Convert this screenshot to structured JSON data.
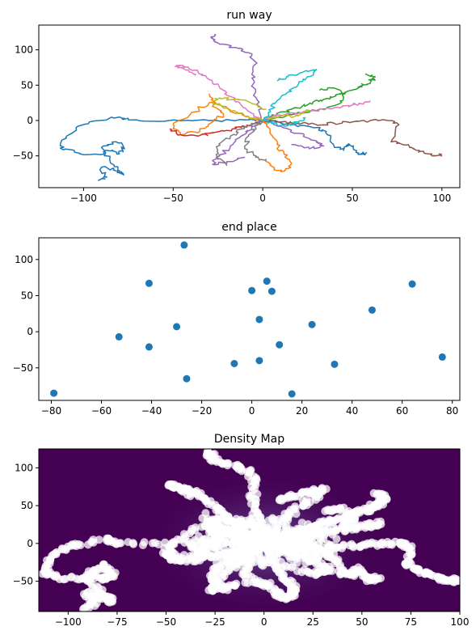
{
  "chart_data": [
    {
      "type": "line",
      "title": "run way",
      "xlabel": "",
      "ylabel": "",
      "xlim": [
        -125,
        110
      ],
      "ylim": [
        -95,
        135
      ],
      "xticks": [
        -100,
        -50,
        0,
        50,
        100
      ],
      "yticks": [
        -50,
        0,
        50,
        100
      ],
      "grid": false,
      "series": [
        {
          "color": "#1f77b4",
          "x": [
            0,
            -10,
            -30,
            -55,
            -75,
            -80,
            -95,
            -103,
            -110,
            -113,
            -105,
            -92,
            -85,
            -80,
            -77,
            -82,
            -90,
            -85,
            -80,
            -78,
            -83,
            -90,
            -87,
            -92
          ],
          "y": [
            0,
            1,
            0,
            -1,
            1,
            5,
            -1,
            -8,
            -24,
            -39,
            -45,
            -48,
            -43,
            -47,
            -40,
            -30,
            -38,
            -60,
            -71,
            -76,
            -70,
            -66,
            -80,
            -85
          ]
        },
        {
          "color": "#1f77b4",
          "x": [
            0,
            18,
            32,
            36,
            40,
            45,
            48,
            52,
            55,
            58
          ],
          "y": [
            0,
            -6,
            -10,
            -20,
            -38,
            -42,
            -33,
            -45,
            -48,
            -45
          ]
        },
        {
          "color": "#ff7f0e",
          "x": [
            0,
            -8,
            -14,
            -18,
            -22,
            -30,
            -40,
            -50,
            -46,
            -35,
            -28,
            -22,
            -26,
            -30
          ],
          "y": [
            0,
            5,
            10,
            14,
            20,
            25,
            10,
            -5,
            -20,
            -15,
            -2,
            8,
            18,
            38
          ]
        },
        {
          "color": "#ff7f0e",
          "x": [
            0,
            4,
            8,
            12,
            16,
            14,
            10,
            6,
            2
          ],
          "y": [
            0,
            -18,
            -34,
            -48,
            -60,
            -68,
            -72,
            -66,
            -54
          ]
        },
        {
          "color": "#2ca02c",
          "x": [
            0,
            8,
            16,
            22,
            28,
            34,
            40,
            46,
            52,
            56,
            60,
            62,
            58
          ],
          "y": [
            0,
            10,
            16,
            20,
            26,
            30,
            34,
            40,
            44,
            50,
            54,
            61,
            66
          ]
        },
        {
          "color": "#2ca02c",
          "x": [
            0,
            16,
            30,
            44,
            46,
            38,
            32
          ],
          "y": [
            0,
            8,
            14,
            26,
            38,
            46,
            44
          ]
        },
        {
          "color": "#d62728",
          "x": [
            0,
            -6,
            -12,
            -20,
            -30,
            -36,
            -46,
            -52
          ],
          "y": [
            0,
            -6,
            -10,
            -14,
            -18,
            -22,
            -20,
            -12
          ]
        },
        {
          "color": "#9467bd",
          "x": [
            0,
            -2,
            -4,
            -6,
            -4,
            -8,
            -14,
            -24,
            -28,
            -27
          ],
          "y": [
            0,
            20,
            40,
            60,
            80,
            96,
            102,
            108,
            118,
            121
          ]
        },
        {
          "color": "#9467bd",
          "x": [
            0,
            -6,
            -12,
            -18,
            -24,
            -28,
            -20,
            -10
          ],
          "y": [
            0,
            -10,
            -22,
            -36,
            -50,
            -62,
            -58,
            -52
          ]
        },
        {
          "color": "#9467bd",
          "x": [
            0,
            10,
            20,
            28,
            34,
            26,
            16
          ],
          "y": [
            0,
            -8,
            -18,
            -28,
            -36,
            -40,
            -34
          ]
        },
        {
          "color": "#8c564b",
          "x": [
            0,
            10,
            20,
            30,
            40,
            50,
            60,
            70,
            76,
            72,
            78,
            84,
            90,
            96,
            100
          ],
          "y": [
            0,
            -2,
            -4,
            -6,
            -4,
            -2,
            0,
            0,
            -6,
            -28,
            -34,
            -40,
            -46,
            -50,
            -48
          ]
        },
        {
          "color": "#e377c2",
          "x": [
            0,
            -6,
            -12,
            -18,
            -24,
            -30,
            -36,
            -44,
            -48,
            -42,
            -38
          ],
          "y": [
            0,
            10,
            22,
            34,
            46,
            58,
            68,
            76,
            78,
            72,
            64
          ]
        },
        {
          "color": "#e377c2",
          "x": [
            0,
            14,
            28,
            40,
            48,
            54,
            60
          ],
          "y": [
            0,
            10,
            14,
            18,
            20,
            24,
            28
          ]
        },
        {
          "color": "#7f7f7f",
          "x": [
            0,
            -6,
            -12,
            -18,
            -24,
            -26,
            -20
          ],
          "y": [
            0,
            -6,
            -12,
            -22,
            -34,
            -48,
            -64
          ]
        },
        {
          "color": "#7f7f7f",
          "x": [
            0,
            -4,
            -8,
            -10,
            -4,
            2
          ],
          "y": [
            0,
            -10,
            -22,
            -40,
            -52,
            -56
          ]
        },
        {
          "color": "#bcbd22",
          "x": [
            0,
            -8,
            -16,
            -22,
            -28,
            -24,
            -16,
            -6,
            2
          ],
          "y": [
            0,
            6,
            14,
            20,
            26,
            32,
            30,
            24,
            16
          ]
        },
        {
          "color": "#bcbd22",
          "x": [
            0,
            6,
            12,
            18,
            22,
            26
          ],
          "y": [
            0,
            4,
            8,
            6,
            10,
            14
          ]
        },
        {
          "color": "#17becf",
          "x": [
            0,
            4,
            8,
            14,
            20,
            26,
            30,
            22,
            14,
            8
          ],
          "y": [
            0,
            14,
            28,
            40,
            52,
            62,
            72,
            68,
            62,
            56
          ]
        },
        {
          "color": "#17becf",
          "x": [
            0,
            6,
            12,
            16,
            20,
            24
          ],
          "y": [
            0,
            -4,
            -8,
            -6,
            -2,
            4
          ]
        }
      ]
    },
    {
      "type": "scatter",
      "title": "end place",
      "xlabel": "",
      "ylabel": "",
      "xlim": [
        -85,
        83
      ],
      "ylim": [
        -95,
        130
      ],
      "xticks": [
        -80,
        -60,
        -40,
        -20,
        0,
        20,
        40,
        60,
        80
      ],
      "yticks": [
        -50,
        0,
        50,
        100
      ],
      "grid": false,
      "color": "#1f77b4",
      "x": [
        -79,
        -27,
        -41,
        -53,
        -30,
        -41,
        -26,
        -7,
        0,
        3,
        3,
        6,
        8,
        11,
        16,
        24,
        33,
        48,
        64,
        76
      ],
      "y": [
        -85,
        120,
        67,
        -7,
        7,
        -21,
        -65,
        -44,
        57,
        17,
        -40,
        70,
        56,
        -18,
        -86,
        10,
        -45,
        30,
        66,
        -35
      ]
    },
    {
      "type": "heatmap",
      "title": "Density Map",
      "xlabel": "",
      "ylabel": "",
      "xlim": [
        -115,
        100
      ],
      "ylim": [
        -90,
        125
      ],
      "xticks": [
        -100,
        -75,
        -50,
        -25,
        0,
        25,
        50,
        75,
        100
      ],
      "yticks": [
        -50,
        0,
        50,
        100
      ],
      "grid": false,
      "background_color": "#440154",
      "point_color": "#ffffff",
      "points_from_series_of_chart": 0
    }
  ]
}
